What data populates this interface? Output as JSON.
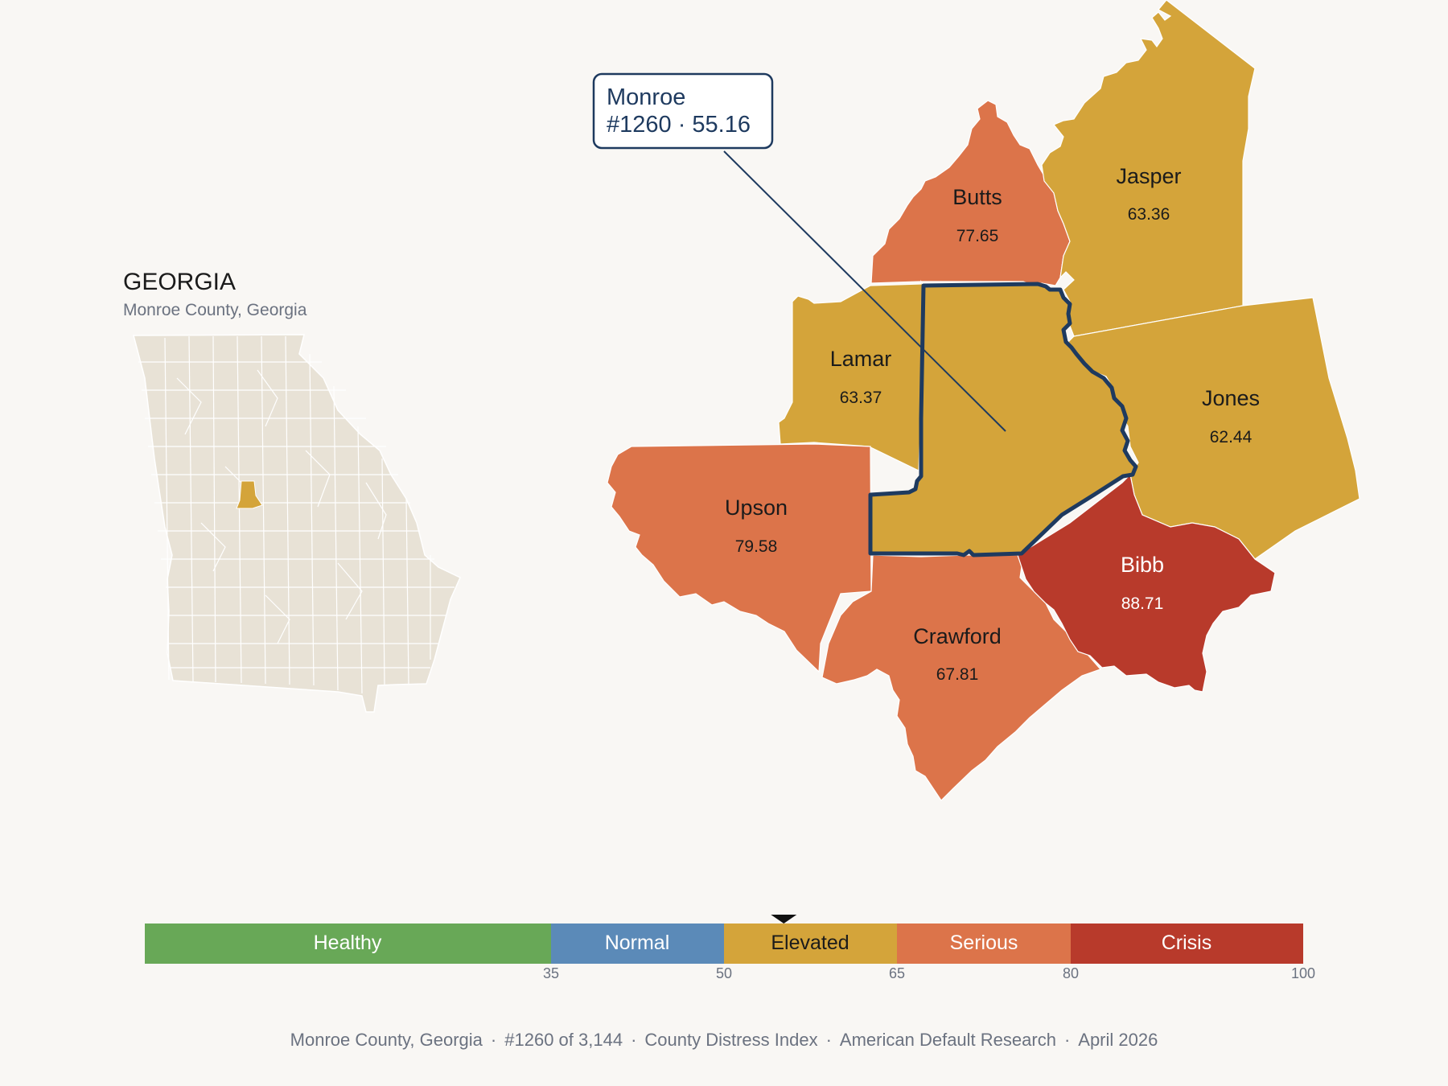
{
  "inset": {
    "title": "GEORGIA",
    "subtitle": "Monroe County, Georgia"
  },
  "callout": {
    "line1": "Monroe",
    "line2": "#1260 · 55.16"
  },
  "colors": {
    "healthy": "#68a857",
    "normal": "#5b8ab8",
    "elevated": "#d4a43a",
    "serious": "#dc744a",
    "crisis": "#b83a2b",
    "outline": "#1e3a5f",
    "state_fill": "#e8e2d6"
  },
  "counties": [
    {
      "name": "Butts",
      "value": "77.65",
      "category": "serious"
    },
    {
      "name": "Jasper",
      "value": "63.36",
      "category": "elevated"
    },
    {
      "name": "Lamar",
      "value": "63.37",
      "category": "elevated"
    },
    {
      "name": "Jones",
      "value": "62.44",
      "category": "elevated"
    },
    {
      "name": "Upson",
      "value": "79.58",
      "category": "serious"
    },
    {
      "name": "Bibb",
      "value": "88.71",
      "category": "crisis"
    },
    {
      "name": "Crawford",
      "value": "67.81",
      "category": "serious"
    }
  ],
  "focus_county": {
    "name": "Monroe",
    "rank": 1260,
    "value": 55.16,
    "category": "elevated"
  },
  "legend": {
    "segments": [
      {
        "label": "Healthy",
        "from": 0,
        "to": 35
      },
      {
        "label": "Normal",
        "from": 35,
        "to": 50
      },
      {
        "label": "Elevated",
        "from": 50,
        "to": 65
      },
      {
        "label": "Serious",
        "from": 65,
        "to": 80
      },
      {
        "label": "Crisis",
        "from": 80,
        "to": 100
      }
    ],
    "ticks": [
      "35",
      "50",
      "65",
      "80",
      "100"
    ],
    "marker_value": 55.16
  },
  "footer": {
    "items": [
      "Monroe County, Georgia",
      "#1260 of 3,144",
      "County Distress Index",
      "American Default Research",
      "April 2026"
    ]
  }
}
